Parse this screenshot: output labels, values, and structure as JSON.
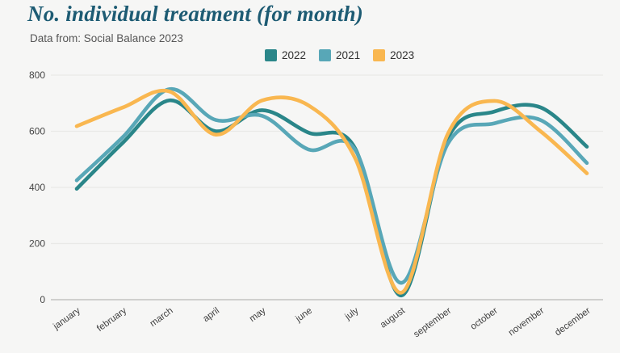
{
  "header": {
    "title": "No. individual treatment (for month)",
    "subtitle": "Data from: Social Balance 2023"
  },
  "legend": {
    "items": [
      {
        "label": "2022",
        "color": "#2a8689"
      },
      {
        "label": "2021",
        "color": "#58a7b7"
      },
      {
        "label": "2023",
        "color": "#f9b750"
      }
    ]
  },
  "chart_data": {
    "type": "line",
    "title": "No. individual treatment (for month)",
    "subtitle": "Data from: Social Balance 2023",
    "categories": [
      "january",
      "february",
      "march",
      "april",
      "may",
      "june",
      "july",
      "august",
      "september",
      "october",
      "november",
      "december"
    ],
    "series": [
      {
        "name": "2022",
        "color": "#2a8689",
        "values": [
          395,
          560,
          710,
          600,
          675,
          595,
          540,
          15,
          575,
          670,
          685,
          545
        ]
      },
      {
        "name": "2021",
        "color": "#58a7b7",
        "values": [
          425,
          580,
          750,
          640,
          655,
          535,
          535,
          60,
          555,
          628,
          640,
          487
        ]
      },
      {
        "name": "2023",
        "color": "#f9b750",
        "values": [
          618,
          685,
          742,
          588,
          710,
          692,
          505,
          25,
          590,
          708,
          600,
          450
        ]
      }
    ],
    "ylim": [
      0,
      800
    ],
    "yticks": [
      0,
      200,
      400,
      600,
      800
    ],
    "grid": "horizontal",
    "legend_position": "top",
    "smooth": true,
    "x_label_rotation": -36
  },
  "colors": {
    "background": "#f6f6f5",
    "title": "#1d5b73",
    "subtitle": "#565656",
    "axis_label": "#454545",
    "gridline": "#e9e9e7",
    "axis_line": "#b9b9b7"
  }
}
